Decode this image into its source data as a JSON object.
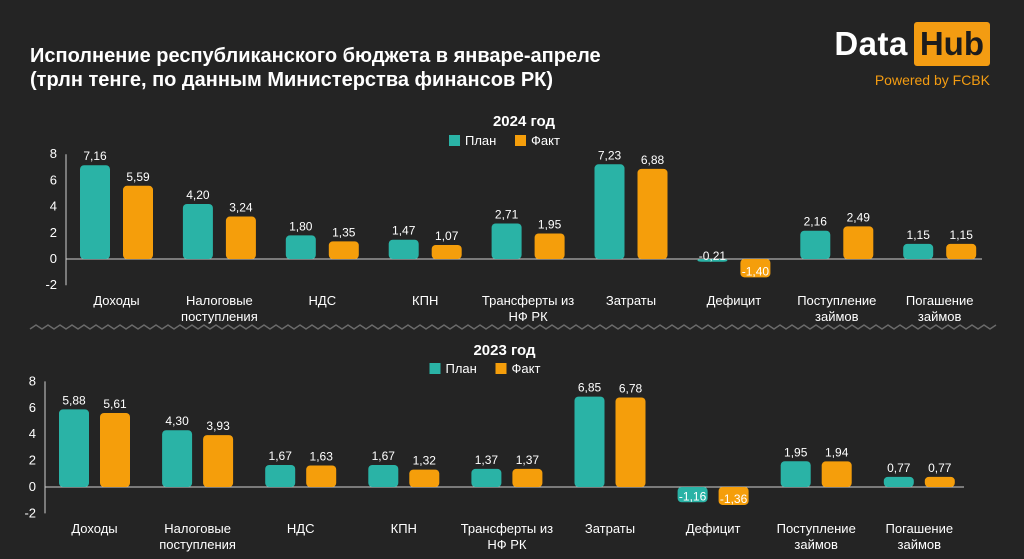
{
  "header": {
    "title_line1": "Исполнение республиканского бюджета в январе-апреле",
    "title_line2": "(трлн тенге, по данным Министерства финансов РК)",
    "brand_data": "Data",
    "brand_hub": "Hub",
    "brand_sub": "Powered by FCBK"
  },
  "colors": {
    "plan": "#2ab3a6",
    "fact": "#f59e0b",
    "background": "#242424",
    "text": "#ffffff"
  },
  "chart_data": [
    {
      "type": "bar",
      "title": "2024 год",
      "legend": [
        "План",
        "Факт"
      ],
      "categories": [
        [
          "Доходы"
        ],
        [
          "Налоговые",
          "поступления"
        ],
        [
          "НДС"
        ],
        [
          "КПН"
        ],
        [
          "Трансферты из",
          "НФ РК"
        ],
        [
          "Затраты"
        ],
        [
          "Дефицит"
        ],
        [
          "Поступление",
          "займов"
        ],
        [
          "Погашение",
          "займов"
        ]
      ],
      "series": [
        {
          "name": "План",
          "values": [
            7.16,
            4.2,
            1.8,
            1.47,
            2.71,
            7.23,
            -0.21,
            2.16,
            1.15
          ]
        },
        {
          "name": "Факт",
          "values": [
            5.59,
            3.24,
            1.35,
            1.07,
            1.95,
            6.88,
            -1.4,
            2.49,
            1.15
          ]
        }
      ],
      "yticks": [
        "8",
        "6",
        "4",
        "2",
        "0",
        "-2"
      ],
      "ylim": [
        -2,
        8
      ]
    },
    {
      "type": "bar",
      "title": "2023 год",
      "legend": [
        "План",
        "Факт"
      ],
      "categories": [
        [
          "Доходы"
        ],
        [
          "Налоговые",
          "поступления"
        ],
        [
          "НДС"
        ],
        [
          "КПН"
        ],
        [
          "Трансферты из",
          "НФ РК"
        ],
        [
          "Затраты"
        ],
        [
          "Дефицит"
        ],
        [
          "Поступление",
          "займов"
        ],
        [
          "Погашение",
          "займов"
        ]
      ],
      "series": [
        {
          "name": "План",
          "values": [
            5.88,
            4.3,
            1.67,
            1.67,
            1.37,
            6.85,
            -1.16,
            1.95,
            0.77
          ]
        },
        {
          "name": "Факт",
          "values": [
            5.61,
            3.93,
            1.63,
            1.32,
            1.37,
            6.78,
            -1.36,
            1.94,
            0.77
          ]
        }
      ],
      "yticks": [
        "8",
        "6",
        "4",
        "2",
        "0",
        "-2"
      ],
      "ylim": [
        -2,
        8
      ]
    }
  ]
}
